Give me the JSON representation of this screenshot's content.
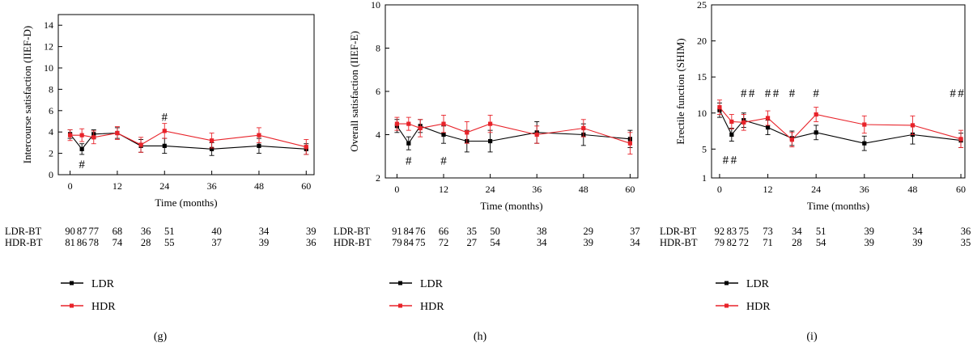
{
  "colors": {
    "LDR": "#000000",
    "HDR": "#e8232a"
  },
  "legend_labels": [
    "LDR",
    "HDR"
  ],
  "count_labels": [
    "LDR-BT",
    "HDR-BT"
  ],
  "chart_data": [
    {
      "type": "line",
      "panel_label": "(g)",
      "xlabel": "Time (months)",
      "ylabel": "Intercourse satisfaction (IIEF-D)",
      "xlim": [
        -3,
        62
      ],
      "ylim": [
        0,
        15
      ],
      "xticks": [
        0,
        12,
        24,
        36,
        48,
        60
      ],
      "yticks": [
        0,
        2,
        4,
        6,
        8,
        10,
        12,
        14
      ],
      "x": [
        0,
        3,
        6,
        12,
        18,
        24,
        36,
        48,
        60
      ],
      "series": [
        {
          "name": "LDR",
          "values": [
            3.8,
            2.4,
            3.8,
            3.9,
            2.7,
            2.7,
            2.4,
            2.7,
            2.4
          ],
          "err": [
            0.4,
            0.5,
            0.4,
            0.5,
            0.6,
            0.7,
            0.6,
            0.7,
            0.5
          ]
        },
        {
          "name": "HDR",
          "values": [
            3.7,
            3.7,
            3.5,
            3.9,
            2.8,
            4.1,
            3.2,
            3.7,
            2.6
          ],
          "err": [
            0.5,
            0.6,
            0.6,
            0.6,
            0.7,
            0.7,
            0.7,
            0.7,
            0.7
          ]
        }
      ],
      "annotations": [
        {
          "text": "#",
          "series": "LDR",
          "x": 3,
          "y": 1.0
        },
        {
          "text": "#",
          "series": "HDR",
          "x": 24,
          "y": 5.4
        }
      ],
      "counts": {
        "LDR-BT": [
          "90",
          "87",
          "77",
          "68",
          "36",
          "51",
          "40",
          "34",
          "39"
        ],
        "HDR-BT": [
          "81",
          "86",
          "78",
          "74",
          "28",
          "55",
          "37",
          "39",
          "36"
        ]
      }
    },
    {
      "type": "line",
      "panel_label": "(h)",
      "xlabel": "Time (months)",
      "ylabel": "Overall satisfaction (IIEF-E)",
      "xlim": [
        -3,
        62
      ],
      "ylim": [
        2,
        10
      ],
      "xticks": [
        0,
        12,
        24,
        36,
        48,
        60
      ],
      "yticks": [
        2,
        4,
        6,
        8,
        10
      ],
      "x": [
        0,
        3,
        6,
        12,
        18,
        24,
        36,
        48,
        60
      ],
      "series": [
        {
          "name": "LDR",
          "values": [
            4.4,
            3.6,
            4.4,
            4.0,
            3.7,
            3.7,
            4.1,
            4.0,
            3.8
          ],
          "err": [
            0.3,
            0.3,
            0.3,
            0.4,
            0.5,
            0.5,
            0.5,
            0.5,
            0.4
          ]
        },
        {
          "name": "HDR",
          "values": [
            4.5,
            4.5,
            4.3,
            4.5,
            4.1,
            4.5,
            4.0,
            4.3,
            3.6
          ],
          "err": [
            0.3,
            0.3,
            0.4,
            0.4,
            0.5,
            0.4,
            0.4,
            0.4,
            0.5
          ]
        }
      ],
      "annotations": [
        {
          "text": "#",
          "series": "LDR",
          "x": 3,
          "y": 2.8
        },
        {
          "text": "#",
          "series": "LDR",
          "x": 12,
          "y": 2.8
        }
      ],
      "counts": {
        "LDR-BT": [
          "91",
          "84",
          "76",
          "66",
          "35",
          "50",
          "38",
          "29",
          "37"
        ],
        "HDR-BT": [
          "79",
          "84",
          "75",
          "72",
          "27",
          "54",
          "34",
          "39",
          "34"
        ]
      }
    },
    {
      "type": "line",
      "panel_label": "(i)",
      "xlabel": "Time (months)",
      "ylabel": "Erectile function (SHIM)",
      "xlim": [
        -2,
        61
      ],
      "ylim": [
        1,
        25
      ],
      "xticks": [
        0,
        12,
        24,
        36,
        48,
        60
      ],
      "yticks": [
        1,
        5,
        10,
        15,
        20,
        25
      ],
      "x": [
        0,
        3,
        6,
        12,
        18,
        24,
        36,
        48,
        60
      ],
      "series": [
        {
          "name": "LDR",
          "values": [
            10.4,
            7.0,
            9.0,
            8.0,
            6.5,
            7.3,
            5.8,
            7.0,
            6.2
          ],
          "err": [
            1.0,
            0.9,
            1.0,
            1.0,
            1.0,
            1.0,
            1.0,
            1.3,
            1.0
          ]
        },
        {
          "name": "HDR",
          "values": [
            10.8,
            8.8,
            8.7,
            9.3,
            6.3,
            9.8,
            8.4,
            8.3,
            6.4
          ],
          "err": [
            1.0,
            1.0,
            1.1,
            1.0,
            1.0,
            1.0,
            1.2,
            1.3,
            1.2
          ]
        }
      ],
      "annotations": [
        {
          "text": "#",
          "series": "LDR",
          "x": 6,
          "y": 12.8
        },
        {
          "text": "#",
          "series": "HDR",
          "x": 8,
          "y": 12.8
        },
        {
          "text": "#",
          "series": "LDR",
          "x": 12,
          "y": 12.8
        },
        {
          "text": "#",
          "series": "HDR",
          "x": 14,
          "y": 12.8
        },
        {
          "text": "#",
          "series": "LDR",
          "x": 18,
          "y": 12.8
        },
        {
          "text": "#",
          "series": "LDR",
          "x": 24,
          "y": 12.8
        },
        {
          "text": "#",
          "series": "LDR",
          "x": 58,
          "y": 12.8
        },
        {
          "text": "#",
          "series": "HDR",
          "x": 60,
          "y": 12.8
        },
        {
          "text": "#",
          "series": "LDR",
          "x": 1.5,
          "y": 3.5
        },
        {
          "text": "#",
          "series": "HDR",
          "x": 3.5,
          "y": 3.5
        }
      ],
      "counts": {
        "LDR-BT": [
          "92",
          "83",
          "75",
          "73",
          "34",
          "51",
          "39",
          "34",
          "36"
        ],
        "HDR-BT": [
          "79",
          "82",
          "72",
          "71",
          "28",
          "54",
          "39",
          "39",
          "35"
        ]
      }
    }
  ]
}
